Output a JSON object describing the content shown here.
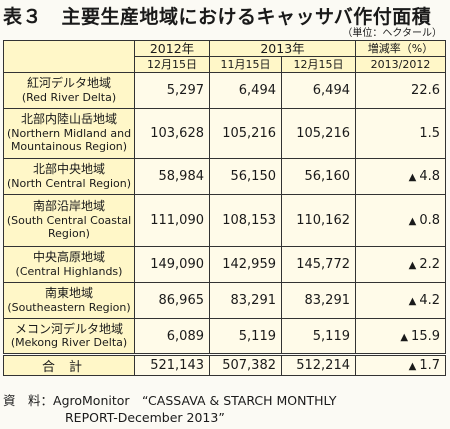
{
  "title": "表３　主要生産地域におけるキャッサバ作付面積",
  "unit": "（単位：ヘクタール）",
  "header": {
    "col2012": "2012年",
    "col2013": "2013年",
    "rate": "増減率（%）",
    "date1": "12月15日",
    "date2": "11月15日",
    "date3": "12月15日",
    "rate_period": "2013/2012"
  },
  "rows": [
    {
      "jp": "紅河デルタ地域",
      "en": "(Red River Delta)",
      "v2012": "5,297",
      "nov2013": "6,494",
      "dec2013": "6,494",
      "rate": "22.6",
      "decrease": false
    },
    {
      "jp": "北部内陸山岳地域",
      "en": "(Northern Midland and Mountainous Region)",
      "v2012": "103,628",
      "nov2013": "105,216",
      "dec2013": "105,216",
      "rate": "1.5",
      "decrease": false
    },
    {
      "jp": "北部中央地域",
      "en": "(North Central Region)",
      "v2012": "58,984",
      "nov2013": "56,150",
      "dec2013": "56,160",
      "rate": "4.8",
      "decrease": true
    },
    {
      "jp": "南部沿岸地域",
      "en": "(South Central Coastal Region)",
      "v2012": "111,090",
      "nov2013": "108,153",
      "dec2013": "110,162",
      "rate": "0.8",
      "decrease": true
    },
    {
      "jp": "中央高原地域",
      "en": "(Central Highlands)",
      "v2012": "149,090",
      "nov2013": "142,959",
      "dec2013": "145,772",
      "rate": "2.2",
      "decrease": true
    },
    {
      "jp": "南東地域",
      "en": "(Southeastern Region)",
      "v2012": "86,965",
      "nov2013": "83,291",
      "dec2013": "83,291",
      "rate": "4.2",
      "decrease": true
    },
    {
      "jp": "メコン河デルタ地域",
      "en": "(Mekong River Delta)",
      "v2012": "6,089",
      "nov2013": "5,119",
      "dec2013": "5,119",
      "rate": "15.9",
      "decrease": true
    }
  ],
  "total": {
    "label": "合計",
    "v2012": "521,143",
    "nov2013": "507,382",
    "dec2013": "512,214",
    "rate": "1.7",
    "decrease": true
  },
  "source": {
    "label": "資　料：",
    "line1": "AgroMonitor　“CASSAVA & STARCH MONTHLY",
    "line2": "REPORT-December 2013”"
  },
  "icons": {
    "decrease": "black-up-triangle"
  }
}
